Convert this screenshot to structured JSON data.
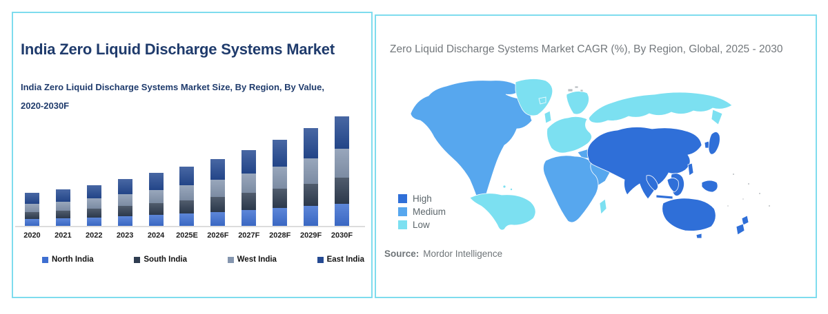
{
  "left_panel": {
    "title": "India Zero Liquid Discharge Systems Market",
    "subtitle_line1": "India Zero Liquid Discharge Systems Market Size, By Region, By Value,",
    "subtitle_line2": "2020-2030F"
  },
  "right_panel": {
    "title": "Zero Liquid Discharge Systems Market CAGR (%), By Region, Global, 2025 - 2030",
    "source_label": "Source:",
    "source_value": "Mordor Intelligence"
  },
  "chart_data": [
    {
      "type": "bar",
      "stacked": true,
      "title": "India Zero Liquid Discharge Systems Market Size, By Region, By Value, 2020-2030F",
      "categories": [
        "2020",
        "2021",
        "2022",
        "2023",
        "2024",
        "2025E",
        "2026F",
        "2027F",
        "2028F",
        "2029F",
        "2030F"
      ],
      "series": [
        {
          "name": "North India",
          "color": "#3e6fd1",
          "values": [
            10,
            11,
            12,
            14,
            16,
            18,
            20,
            23,
            26,
            29,
            32
          ]
        },
        {
          "name": "South India",
          "color": "#2f3d51",
          "values": [
            10,
            11,
            13,
            15,
            17,
            19,
            22,
            25,
            28,
            32,
            38
          ]
        },
        {
          "name": "West India",
          "color": "#8596af",
          "values": [
            12,
            13,
            15,
            17,
            19,
            22,
            25,
            28,
            32,
            37,
            42
          ]
        },
        {
          "name": "East India",
          "color": "#254a92",
          "values": [
            16,
            18,
            19,
            22,
            25,
            27,
            30,
            34,
            39,
            44,
            47
          ]
        }
      ],
      "units": "relative-height-estimate (no value axis shown)",
      "xlabel": "",
      "ylabel": "",
      "grid": false,
      "legend_position": "bottom"
    },
    {
      "type": "heatmap",
      "subtype": "choropleth-world-map",
      "title": "Zero Liquid Discharge Systems Market CAGR (%), By Region, Global, 2025 - 2030",
      "legend": [
        {
          "label": "High",
          "color": "#2f6fd8"
        },
        {
          "label": "Medium",
          "color": "#57a7ee"
        },
        {
          "label": "Low",
          "color": "#7ce0f1"
        }
      ],
      "regions": {
        "high": [
          "Asia-Pacific (China, India, Central Asia, Iran, Southeast Asia, Japan, Indonesia, Australia, New Zealand)"
        ],
        "medium": [
          "North America",
          "Africa",
          "Middle East"
        ],
        "low": [
          "Europe",
          "Russia & Northern Eurasia",
          "South America",
          "Greenland"
        ]
      },
      "legend_position": "bottom-left",
      "source": "Mordor Intelligence"
    }
  ]
}
